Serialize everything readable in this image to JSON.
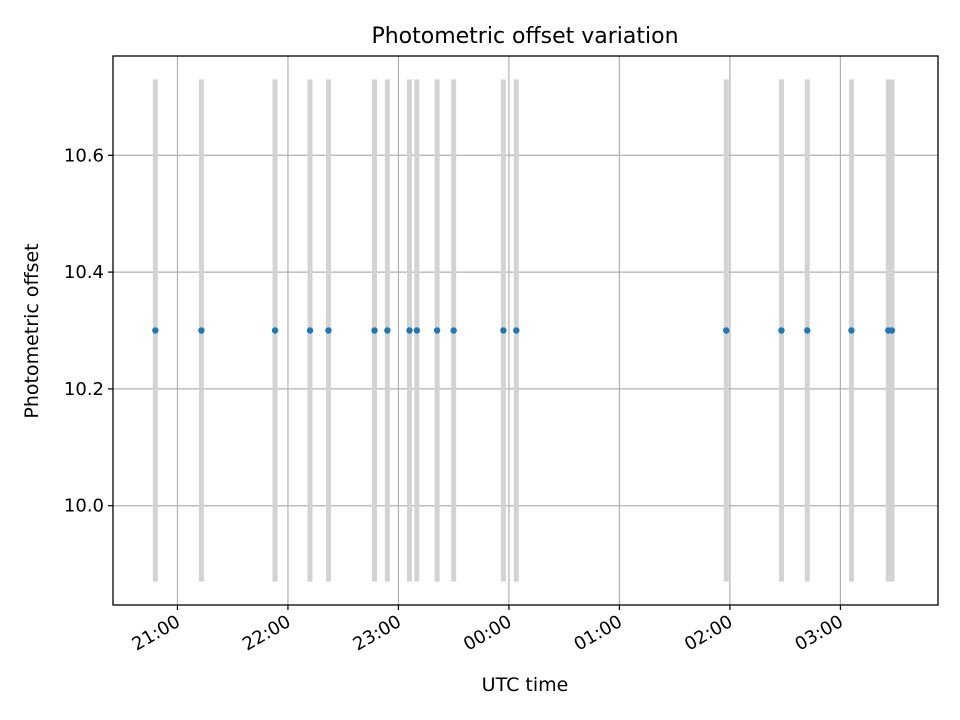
{
  "chart_data": {
    "type": "scatter",
    "title": "Photometric offset variation",
    "xlabel": "UTC time",
    "ylabel": "Photometric offset",
    "x_unit": "UTC time of day",
    "x_range": [
      "20:25",
      "03:53"
    ],
    "ylim": [
      9.83,
      10.77
    ],
    "grid": true,
    "x_ticks": [
      "21:00",
      "22:00",
      "23:00",
      "00:00",
      "01:00",
      "02:00",
      "03:00"
    ],
    "y_ticks": [
      "10.0",
      "10.2",
      "10.4",
      "10.6"
    ],
    "y_tick_values": [
      10.0,
      10.2,
      10.4,
      10.6
    ],
    "marker_color": "#1f77b4",
    "errorbar_color": "#d3d3d3",
    "errorbar_range": [
      9.87,
      10.73
    ],
    "series": [
      {
        "x": [
          "20:48",
          "21:13",
          "21:53",
          "22:12",
          "22:22",
          "22:47",
          "22:54",
          "23:06",
          "23:10",
          "23:21",
          "23:30",
          "23:57",
          "00:04",
          "01:58",
          "02:28",
          "02:42",
          "03:06",
          "03:26",
          "03:28"
        ],
        "y": [
          10.3,
          10.3,
          10.3,
          10.3,
          10.3,
          10.3,
          10.3,
          10.3,
          10.3,
          10.3,
          10.3,
          10.3,
          10.3,
          10.3,
          10.3,
          10.3,
          10.3,
          10.3,
          10.3
        ]
      }
    ]
  }
}
